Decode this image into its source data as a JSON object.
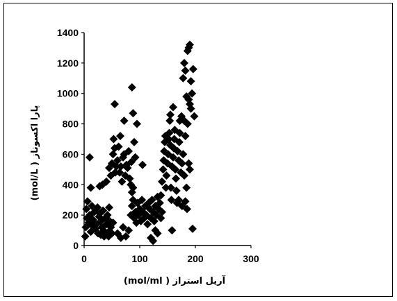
{
  "chart_data": {
    "type": "scatter",
    "title": "",
    "xlabel": "آریل استراز (  mol/ml)",
    "ylabel": "پارا اکسوناز (  mol/L)",
    "xlim": [
      0,
      300
    ],
    "ylim": [
      0,
      1400
    ],
    "xticks": [
      "0",
      "100",
      "200",
      "300"
    ],
    "yticks": [
      "0",
      "200",
      "400",
      "600",
      "800",
      "1000",
      "1200",
      "1400"
    ],
    "grid": false,
    "legend": "none",
    "marker": "diamond",
    "marker_color": "#000000",
    "series": [
      {
        "points": [
          [
            2,
            60
          ],
          [
            3,
            120
          ],
          [
            5,
            180
          ],
          [
            4,
            240
          ],
          [
            6,
            290
          ],
          [
            8,
            150
          ],
          [
            10,
            200
          ],
          [
            12,
            90
          ],
          [
            14,
            260
          ],
          [
            15,
            130
          ],
          [
            16,
            170
          ],
          [
            18,
            220
          ],
          [
            20,
            110
          ],
          [
            22,
            140
          ],
          [
            24,
            250
          ],
          [
            25,
            80
          ],
          [
            27,
            190
          ],
          [
            28,
            210
          ],
          [
            30,
            160
          ],
          [
            32,
            120
          ],
          [
            34,
            230
          ],
          [
            35,
            100
          ],
          [
            36,
            70
          ],
          [
            38,
            180
          ],
          [
            40,
            140
          ],
          [
            42,
            200
          ],
          [
            44,
            90
          ],
          [
            45,
            250
          ],
          [
            46,
            160
          ],
          [
            48,
            120
          ],
          [
            12,
            380
          ],
          [
            28,
            390
          ],
          [
            10,
            580
          ],
          [
            33,
            400
          ],
          [
            40,
            420
          ],
          [
            30,
            70
          ],
          [
            36,
            60
          ],
          [
            44,
            60
          ],
          [
            50,
            80
          ],
          [
            52,
            150
          ],
          [
            45,
            510
          ],
          [
            48,
            460
          ],
          [
            50,
            540
          ],
          [
            52,
            600
          ],
          [
            53,
            700
          ],
          [
            55,
            640
          ],
          [
            56,
            480
          ],
          [
            58,
            520
          ],
          [
            60,
            560
          ],
          [
            62,
            650
          ],
          [
            64,
            480
          ],
          [
            65,
            720
          ],
          [
            66,
            520
          ],
          [
            68,
            420
          ],
          [
            70,
            580
          ],
          [
            72,
            600
          ],
          [
            74,
            460
          ],
          [
            76,
            530
          ],
          [
            78,
            510
          ],
          [
            80,
            620
          ],
          [
            82,
            440
          ],
          [
            84,
            400
          ],
          [
            86,
            350
          ],
          [
            88,
            380
          ],
          [
            85,
            550
          ],
          [
            90,
            680
          ],
          [
            92,
            580
          ],
          [
            95,
            800
          ],
          [
            72,
            820
          ],
          [
            55,
            930
          ],
          [
            88,
            870
          ],
          [
            86,
            1040
          ],
          [
            60,
            80
          ],
          [
            66,
            50
          ],
          [
            70,
            120
          ],
          [
            75,
            60
          ],
          [
            80,
            100
          ],
          [
            84,
            200
          ],
          [
            86,
            260
          ],
          [
            88,
            300
          ],
          [
            90,
            180
          ],
          [
            92,
            220
          ],
          [
            94,
            150
          ],
          [
            96,
            280
          ],
          [
            98,
            200
          ],
          [
            100,
            240
          ],
          [
            102,
            160
          ],
          [
            104,
            300
          ],
          [
            106,
            220
          ],
          [
            108,
            180
          ],
          [
            110,
            260
          ],
          [
            112,
            200
          ],
          [
            114,
            140
          ],
          [
            116,
            280
          ],
          [
            118,
            240
          ],
          [
            120,
            180
          ],
          [
            122,
            300
          ],
          [
            124,
            220
          ],
          [
            126,
            160
          ],
          [
            128,
            260
          ],
          [
            130,
            200
          ],
          [
            132,
            320
          ],
          [
            134,
            240
          ],
          [
            136,
            280
          ],
          [
            138,
            180
          ],
          [
            140,
            220
          ],
          [
            105,
            530
          ],
          [
            120,
            50
          ],
          [
            124,
            30
          ],
          [
            128,
            100
          ],
          [
            132,
            80
          ],
          [
            138,
            330
          ],
          [
            140,
            420
          ],
          [
            142,
            500
          ],
          [
            143,
            560
          ],
          [
            144,
            620
          ],
          [
            145,
            680
          ],
          [
            146,
            720
          ],
          [
            147,
            380
          ],
          [
            148,
            460
          ],
          [
            150,
            540
          ],
          [
            151,
            600
          ],
          [
            152,
            700
          ],
          [
            153,
            740
          ],
          [
            154,
            820
          ],
          [
            155,
            660
          ],
          [
            156,
            380
          ],
          [
            157,
            300
          ],
          [
            158,
            520
          ],
          [
            160,
            580
          ],
          [
            161,
            640
          ],
          [
            162,
            700
          ],
          [
            163,
            760
          ],
          [
            164,
            500
          ],
          [
            165,
            440
          ],
          [
            166,
            360
          ],
          [
            167,
            280
          ],
          [
            168,
            620
          ],
          [
            170,
            560
          ],
          [
            171,
            680
          ],
          [
            172,
            740
          ],
          [
            174,
            480
          ],
          [
            176,
            540
          ],
          [
            178,
            600
          ],
          [
            180,
            460
          ],
          [
            182,
            720
          ],
          [
            184,
            380
          ],
          [
            186,
            800
          ],
          [
            188,
            540
          ],
          [
            190,
            500
          ],
          [
            192,
            900
          ],
          [
            158,
            100
          ],
          [
            155,
            860
          ],
          [
            160,
            910
          ],
          [
            195,
            110
          ],
          [
            172,
            820
          ],
          [
            175,
            850
          ],
          [
            178,
            1100
          ],
          [
            180,
            1200
          ],
          [
            182,
            1150
          ],
          [
            184,
            980
          ],
          [
            186,
            1280
          ],
          [
            188,
            1300
          ],
          [
            190,
            1320
          ],
          [
            192,
            1080
          ],
          [
            194,
            1000
          ],
          [
            196,
            1160
          ],
          [
            198,
            850
          ],
          [
            185,
            240
          ],
          [
            182,
            290
          ],
          [
            176,
            260
          ],
          [
            170,
            300
          ],
          [
            188,
            960
          ],
          [
            190,
            930
          ],
          [
            180,
            820
          ]
        ]
      }
    ]
  }
}
